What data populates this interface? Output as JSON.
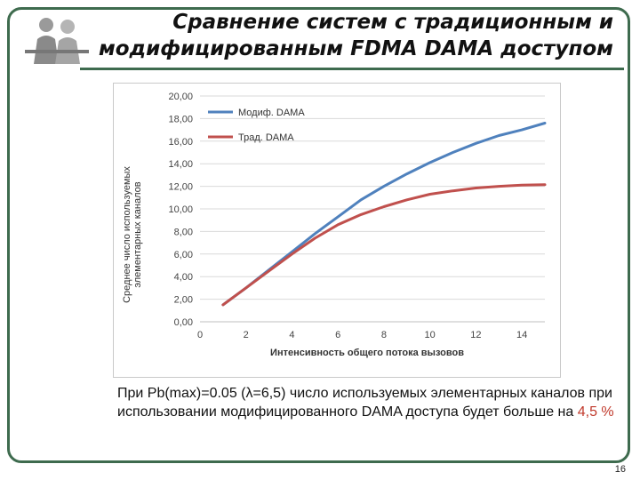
{
  "slide": {
    "title_line1": "Сравнение систем с традиционным и",
    "title_line2": "модифицированным FDMA DAMA доступом",
    "caption_text": "При Pb(max)=0.05 (λ=6,5) число используемых элементарных каналов при использовании модифицированного DAMA доступа будет больше на ",
    "caption_highlight": "4,5 %",
    "page_number": "16"
  },
  "colors": {
    "frame": "#3e6b4e",
    "series_modified": "#4f81bd",
    "series_traditional": "#c0504d",
    "highlight": "#c0392b"
  },
  "chart_data": {
    "type": "line",
    "xlabel": "Интенсивность общего потока вызовов",
    "ylabel_line1": "Среднее число используемых",
    "ylabel_line2": "элементарных каналов",
    "xlim": [
      0,
      15
    ],
    "ylim": [
      0,
      20
    ],
    "x_ticks": [
      "0",
      "2",
      "4",
      "6",
      "8",
      "10",
      "12",
      "14"
    ],
    "x_tick_values": [
      0,
      2,
      4,
      6,
      8,
      10,
      12,
      14
    ],
    "y_ticks": [
      "0,00",
      "2,00",
      "4,00",
      "6,00",
      "8,00",
      "10,00",
      "12,00",
      "14,00",
      "16,00",
      "18,00",
      "20,00"
    ],
    "y_tick_values": [
      0,
      2,
      4,
      6,
      8,
      10,
      12,
      14,
      16,
      18,
      20
    ],
    "grid": "horizontal",
    "legend_position": "top-left",
    "series": [
      {
        "name": "Модиф. DAMA",
        "color": "#4f81bd",
        "x": [
          1,
          2,
          3,
          4,
          5,
          6,
          7,
          8,
          9,
          10,
          11,
          12,
          13,
          14,
          15
        ],
        "y": [
          1.5,
          3.0,
          4.6,
          6.2,
          7.8,
          9.3,
          10.8,
          12.0,
          13.1,
          14.1,
          15.0,
          15.8,
          16.5,
          17.0,
          17.6
        ]
      },
      {
        "name": "Трад. DAMA",
        "color": "#c0504d",
        "x": [
          1,
          2,
          3,
          4,
          5,
          6,
          7,
          8,
          9,
          10,
          11,
          12,
          13,
          14,
          15
        ],
        "y": [
          1.5,
          3.0,
          4.5,
          6.0,
          7.4,
          8.6,
          9.5,
          10.2,
          10.8,
          11.3,
          11.6,
          11.85,
          12.0,
          12.1,
          12.15
        ]
      }
    ]
  }
}
